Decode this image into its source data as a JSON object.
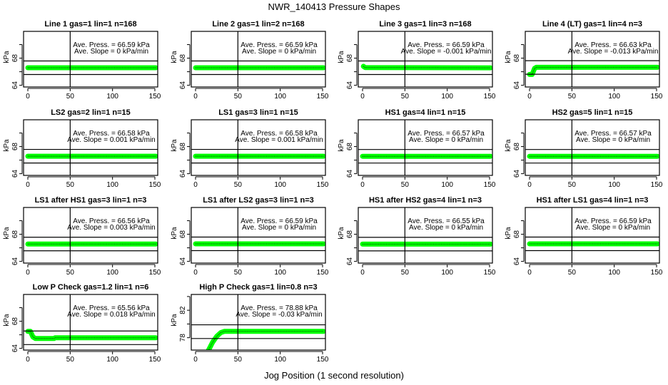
{
  "chart_data": {
    "title": "NWR_140413  Pressure Shapes",
    "xlabel": "Jog Position (1 second resolution)",
    "colors": {
      "points": "#00ff00",
      "point_core": "#000000",
      "lines": "#000000"
    },
    "panels": [
      {
        "type": "line",
        "title": "Line 1 gas=1 lin=1 n=168",
        "ylabel": "kPa",
        "press": "Ave. Press. = 66.59 kPa",
        "slope": "Ave. Slope = 0 kPa/min",
        "ylim": [
          63.75,
          71.95
        ],
        "yticks": [
          64,
          66,
          68,
          70
        ],
        "ytick_labels": [
          "64",
          "",
          "68",
          ""
        ],
        "xticks": [
          0,
          50,
          100,
          150
        ],
        "xtick_labels": [
          "0",
          "50",
          "100",
          "150"
        ],
        "vline": 50,
        "ref_lines": [
          67.59,
          65.59
        ],
        "points": [
          [
            0,
            66.59
          ],
          [
            151,
            66.59
          ]
        ]
      },
      {
        "type": "line",
        "title": "Line 2 gas=1 lin=2 n=168",
        "ylabel": "kPa",
        "press": "Ave. Press. = 66.59 kPa",
        "slope": "Ave. Slope = 0 kPa/min",
        "ylim": [
          63.75,
          71.95
        ],
        "yticks": [
          64,
          66,
          68,
          70
        ],
        "ytick_labels": [
          "64",
          "",
          "68",
          ""
        ],
        "xticks": [
          0,
          50,
          100,
          150
        ],
        "xtick_labels": [
          "0",
          "50",
          "100",
          "150"
        ],
        "vline": 50,
        "ref_lines": [
          67.59,
          65.59
        ],
        "points": [
          [
            0,
            66.59
          ],
          [
            151,
            66.59
          ]
        ]
      },
      {
        "type": "line",
        "title": "Line 3 gas=1 lin=3 n=168",
        "ylabel": "kPa",
        "press": "Ave. Press. = 66.59 kPa",
        "slope": "Ave. Slope = -0.001 kPa/min",
        "ylim": [
          63.75,
          71.95
        ],
        "yticks": [
          64,
          66,
          68,
          70
        ],
        "ytick_labels": [
          "64",
          "",
          "68",
          ""
        ],
        "xticks": [
          0,
          50,
          100,
          150
        ],
        "xtick_labels": [
          "0",
          "50",
          "100",
          "150"
        ],
        "vline": 50,
        "ref_lines": [
          67.59,
          65.59
        ],
        "points": [
          [
            1,
            66.8
          ],
          [
            3,
            66.62
          ],
          [
            151,
            66.58
          ]
        ]
      },
      {
        "type": "line",
        "title": "Line 4 (LT) gas=1 lin=4 n=3",
        "ylabel": "kPa",
        "press": "Ave. Press. = 66.63 kPa",
        "slope": "Ave. Slope = -0.013 kPa/min",
        "ylim": [
          63.75,
          71.95
        ],
        "yticks": [
          64,
          66,
          68,
          70
        ],
        "ytick_labels": [
          "64",
          "",
          "68",
          ""
        ],
        "xticks": [
          0,
          50,
          100,
          150
        ],
        "xtick_labels": [
          "0",
          "50",
          "100",
          "150"
        ],
        "vline": 50,
        "ref_lines": [
          67.63,
          65.63
        ],
        "points": [
          [
            0,
            65.6
          ],
          [
            3,
            65.6
          ],
          [
            6,
            66.5
          ],
          [
            8,
            66.65
          ],
          [
            151,
            66.65
          ]
        ]
      },
      {
        "type": "line",
        "title": "LS2 gas=2 lin=1 n=15",
        "ylabel": "kPa",
        "press": "Ave. Press. = 66.58 kPa",
        "slope": "Ave. Slope = 0.001 kPa/min",
        "ylim": [
          63.75,
          71.95
        ],
        "yticks": [
          64,
          66,
          68,
          70
        ],
        "ytick_labels": [
          "64",
          "",
          "68",
          ""
        ],
        "xticks": [
          0,
          50,
          100,
          150
        ],
        "xtick_labels": [
          "0",
          "50",
          "100",
          "150"
        ],
        "vline": 50,
        "ref_lines": [
          67.58,
          65.58
        ],
        "points": [
          [
            0,
            66.58
          ],
          [
            151,
            66.58
          ]
        ]
      },
      {
        "type": "line",
        "title": "LS1 gas=3 lin=1 n=15",
        "ylabel": "kPa",
        "press": "Ave. Press. = 66.58 kPa",
        "slope": "Ave. Slope = 0.001 kPa/min",
        "ylim": [
          63.75,
          71.95
        ],
        "yticks": [
          64,
          66,
          68,
          70
        ],
        "ytick_labels": [
          "64",
          "",
          "68",
          ""
        ],
        "xticks": [
          0,
          50,
          100,
          150
        ],
        "xtick_labels": [
          "0",
          "50",
          "100",
          "150"
        ],
        "vline": 50,
        "ref_lines": [
          67.58,
          65.58
        ],
        "points": [
          [
            0,
            66.58
          ],
          [
            151,
            66.58
          ]
        ]
      },
      {
        "type": "line",
        "title": "HS1 gas=4 lin=1 n=15",
        "ylabel": "kPa",
        "press": "Ave. Press. = 66.57 kPa",
        "slope": "Ave. Slope = 0 kPa/min",
        "ylim": [
          63.75,
          71.95
        ],
        "yticks": [
          64,
          66,
          68,
          70
        ],
        "ytick_labels": [
          "64",
          "",
          "68",
          ""
        ],
        "xticks": [
          0,
          50,
          100,
          150
        ],
        "xtick_labels": [
          "0",
          "50",
          "100",
          "150"
        ],
        "vline": 50,
        "ref_lines": [
          67.57,
          65.57
        ],
        "points": [
          [
            0,
            66.57
          ],
          [
            151,
            66.57
          ]
        ]
      },
      {
        "type": "line",
        "title": "HS2 gas=5 lin=1 n=15",
        "ylabel": "kPa",
        "press": "Ave. Press. = 66.57 kPa",
        "slope": "Ave. Slope = 0 kPa/min",
        "ylim": [
          63.75,
          71.95
        ],
        "yticks": [
          64,
          66,
          68,
          70
        ],
        "ytick_labels": [
          "64",
          "",
          "68",
          ""
        ],
        "xticks": [
          0,
          50,
          100,
          150
        ],
        "xtick_labels": [
          "0",
          "50",
          "100",
          "150"
        ],
        "vline": 50,
        "ref_lines": [
          67.57,
          65.57
        ],
        "points": [
          [
            0,
            66.57
          ],
          [
            151,
            66.57
          ]
        ]
      },
      {
        "type": "line",
        "title": "LS1 after HS1 gas=3 lin=1 n=3",
        "ylabel": "kPa",
        "press": "Ave. Press. = 66.56 kPa",
        "slope": "Ave. Slope = 0.003 kPa/min",
        "ylim": [
          63.75,
          71.95
        ],
        "yticks": [
          64,
          66,
          68,
          70
        ],
        "ytick_labels": [
          "64",
          "",
          "68",
          ""
        ],
        "xticks": [
          0,
          50,
          100,
          150
        ],
        "xtick_labels": [
          "0",
          "50",
          "100",
          "150"
        ],
        "vline": 50,
        "ref_lines": [
          67.56,
          65.56
        ],
        "points": [
          [
            0,
            66.56
          ],
          [
            151,
            66.56
          ]
        ]
      },
      {
        "type": "line",
        "title": "LS1 after LS2 gas=3 lin=1 n=3",
        "ylabel": "kPa",
        "press": "Ave. Press. = 66.59 kPa",
        "slope": "Ave. Slope = 0 kPa/min",
        "ylim": [
          63.75,
          71.95
        ],
        "yticks": [
          64,
          66,
          68,
          70
        ],
        "ytick_labels": [
          "64",
          "",
          "68",
          ""
        ],
        "xticks": [
          0,
          50,
          100,
          150
        ],
        "xtick_labels": [
          "0",
          "50",
          "100",
          "150"
        ],
        "vline": 50,
        "ref_lines": [
          67.59,
          65.59
        ],
        "points": [
          [
            0,
            66.59
          ],
          [
            151,
            66.59
          ]
        ]
      },
      {
        "type": "line",
        "title": "HS1 after HS2 gas=4 lin=1 n=3",
        "ylabel": "kPa",
        "press": "Ave. Press. = 66.55 kPa",
        "slope": "Ave. Slope = 0 kPa/min",
        "ylim": [
          63.75,
          71.95
        ],
        "yticks": [
          64,
          66,
          68,
          70
        ],
        "ytick_labels": [
          "64",
          "",
          "68",
          ""
        ],
        "xticks": [
          0,
          50,
          100,
          150
        ],
        "xtick_labels": [
          "0",
          "50",
          "100",
          "150"
        ],
        "vline": 50,
        "ref_lines": [
          67.55,
          65.55
        ],
        "points": [
          [
            0,
            66.55
          ],
          [
            151,
            66.55
          ]
        ]
      },
      {
        "type": "line",
        "title": "HS1 after LS1 gas=4 lin=1 n=3",
        "ylabel": "kPa",
        "press": "Ave. Press. = 66.59 kPa",
        "slope": "Ave. Slope = 0 kPa/min",
        "ylim": [
          63.75,
          71.95
        ],
        "yticks": [
          64,
          66,
          68,
          70
        ],
        "ytick_labels": [
          "64",
          "",
          "68",
          ""
        ],
        "xticks": [
          0,
          50,
          100,
          150
        ],
        "xtick_labels": [
          "0",
          "50",
          "100",
          "150"
        ],
        "vline": 50,
        "ref_lines": [
          67.59,
          65.59
        ],
        "points": [
          [
            0,
            66.59
          ],
          [
            151,
            66.59
          ]
        ]
      },
      {
        "type": "line",
        "title": "Low P Check gas=1.2 lin=1 n=6",
        "ylabel": "kPa",
        "press": "Ave. Press. = 65.56 kPa",
        "slope": "Ave. Slope = 0.018 kPa/min",
        "ylim": [
          63.75,
          71.95
        ],
        "yticks": [
          64,
          66,
          68,
          70
        ],
        "ytick_labels": [
          "64",
          "",
          "68",
          ""
        ],
        "xticks": [
          0,
          50,
          100,
          150
        ],
        "xtick_labels": [
          "0",
          "50",
          "100",
          "150"
        ],
        "vline": 50,
        "ref_lines": [
          66.56,
          64.56
        ],
        "points": [
          [
            0,
            66.5
          ],
          [
            3,
            66.5
          ],
          [
            6,
            65.7
          ],
          [
            9,
            65.45
          ],
          [
            31,
            65.45
          ],
          [
            32,
            65.56
          ],
          [
            151,
            65.56
          ]
        ]
      },
      {
        "type": "line",
        "title": "High P Check gas=1 lin=0.8 n=3",
        "ylabel": "kPa",
        "press": "Ave. Press. = 78.88 kPa",
        "slope": "Ave. Slope = -0.03 kPa/min",
        "ylim": [
          76.2,
          84.3
        ],
        "yticks": [
          78,
          80,
          82,
          84
        ],
        "ytick_labels": [
          "78",
          "",
          "82",
          ""
        ],
        "xticks": [
          0,
          50,
          100,
          150
        ],
        "xtick_labels": [
          "0",
          "50",
          "100",
          "150"
        ],
        "vline": 50,
        "ref_lines": [
          79.88,
          77.88
        ],
        "points": [
          [
            15,
            76.1
          ],
          [
            20,
            77.3
          ],
          [
            25,
            78.2
          ],
          [
            30,
            78.75
          ],
          [
            34,
            78.92
          ],
          [
            151,
            78.92
          ]
        ]
      }
    ]
  }
}
